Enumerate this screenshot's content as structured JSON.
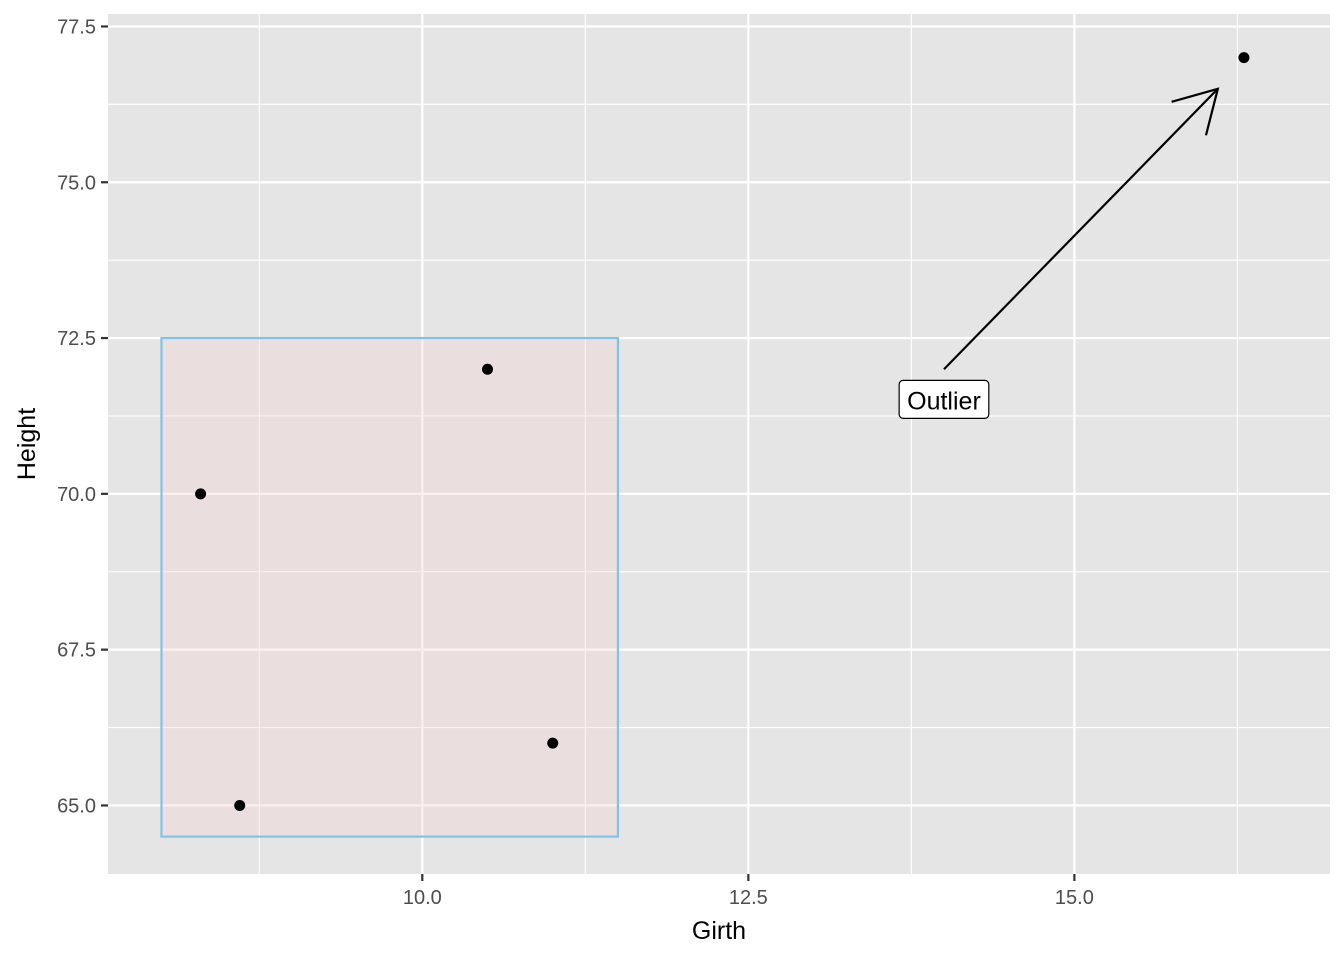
{
  "chart_data": {
    "type": "scatter",
    "xlabel": "Girth",
    "ylabel": "Height",
    "xlim": [
      7.59,
      16.96
    ],
    "ylim": [
      63.9,
      77.7
    ],
    "x_ticks": [
      10.0,
      12.5,
      15.0
    ],
    "x_tick_labels": [
      "10.0",
      "12.5",
      "15.0"
    ],
    "x_minor_ticks": [
      8.75,
      11.25,
      13.75,
      16.25
    ],
    "y_ticks": [
      65.0,
      67.5,
      70.0,
      72.5,
      75.0,
      77.5
    ],
    "y_tick_labels": [
      "65.0",
      "67.5",
      "70.0",
      "72.5",
      "75.0",
      "77.5"
    ],
    "y_minor_ticks": [
      66.25,
      68.75,
      71.25,
      73.75,
      76.25
    ],
    "grid": true,
    "background": "#e5e5e5",
    "points": [
      {
        "x": 8.3,
        "y": 70
      },
      {
        "x": 8.6,
        "y": 65
      },
      {
        "x": 10.5,
        "y": 72
      },
      {
        "x": 11.0,
        "y": 66
      },
      {
        "x": 16.3,
        "y": 77
      }
    ],
    "point_color": "#000000",
    "highlight_rect": {
      "xmin": 8.0,
      "xmax": 11.5,
      "ymin": 64.5,
      "ymax": 72.5,
      "fill": "#f4cccc",
      "fill_opacity": 0.3,
      "stroke": "#7fc4e8"
    },
    "annotation": {
      "label": "Outlier",
      "label_x": 14.0,
      "label_y": 71.5,
      "arrow_from": {
        "x": 14.0,
        "y": 72.0
      },
      "arrow_to": {
        "x": 16.1,
        "y": 76.5
      }
    }
  }
}
